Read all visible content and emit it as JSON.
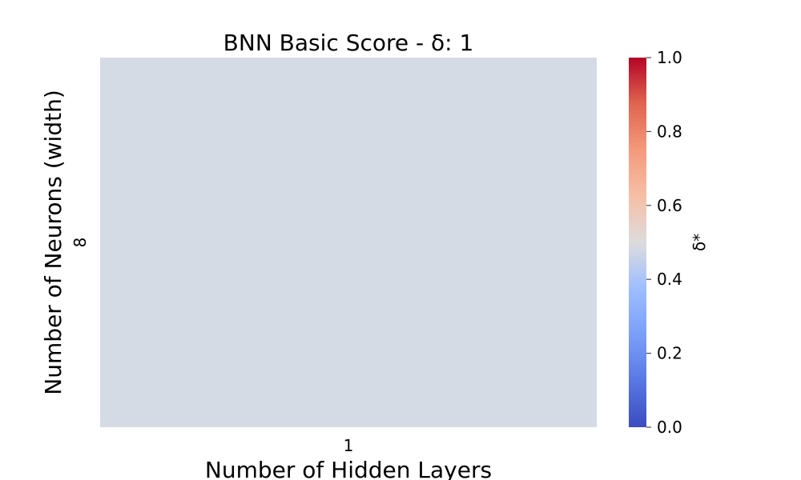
{
  "chart_data": {
    "type": "heatmap",
    "title": "BNN Basic Score - δ: 1",
    "xlabel": "Number of Hidden Layers",
    "ylabel": "Number of Neurons (width)",
    "x_categories": [
      "1"
    ],
    "y_categories": [
      "8"
    ],
    "values": [
      [
        0.5
      ]
    ],
    "colorbar": {
      "label": "δ*",
      "range": [
        0,
        1
      ],
      "ticks": [
        "0.0",
        "0.2",
        "0.4",
        "0.6",
        "0.8",
        "1.0"
      ],
      "colormap": "coolwarm"
    },
    "grid": false
  }
}
